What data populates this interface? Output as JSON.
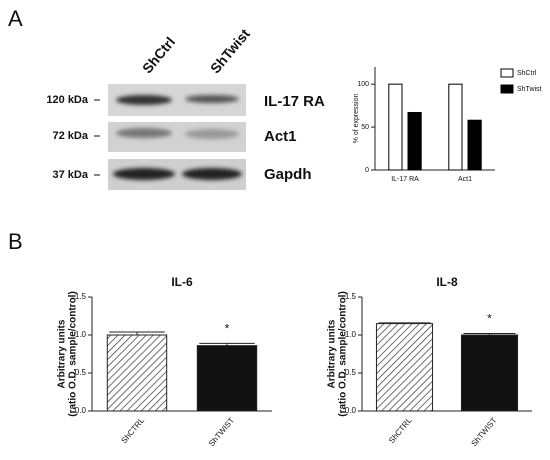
{
  "panel_labels": [
    "A",
    "B"
  ],
  "blot": {
    "lanes": [
      "ShCtrl",
      "ShTwist"
    ],
    "markers": [
      "120 kDa",
      "72 kDa",
      "37 kDa"
    ],
    "proteins": [
      "IL-17 RA",
      "Act1",
      "Gapdh"
    ]
  },
  "chart_data": [
    {
      "type": "grouped-bar",
      "y_label": "% of expression",
      "categories": [
        "IL-17 RA",
        "Act1"
      ],
      "series": [
        {
          "name": "ShCtrl",
          "color": "#ffffff",
          "values": [
            100,
            100
          ]
        },
        {
          "name": "ShTwist",
          "color": "#000000",
          "values": [
            67,
            58
          ]
        }
      ],
      "ylim": [
        0,
        120
      ],
      "yticks": [
        0,
        50,
        100
      ],
      "legend": "right"
    },
    {
      "type": "bar",
      "title": "IL-6",
      "y_label": [
        "Arbitrary units",
        "(ratio O.D. sample/control)"
      ],
      "categories": [
        "ShCTRL",
        "ShTWIST"
      ],
      "values": [
        1.0,
        0.86
      ],
      "errors": [
        0.04,
        0.03
      ],
      "bar_styles": [
        "hatch",
        "solid"
      ],
      "color": "#111111",
      "significance": [
        null,
        "*"
      ],
      "ylim": [
        0,
        1.5
      ],
      "yticks": [
        {
          "value": 0,
          "label": "0.0"
        },
        {
          "value": 0.5,
          "label": "0.5"
        },
        {
          "value": 1,
          "label": "1.0"
        },
        {
          "value": 1.5,
          "label": "1.5"
        }
      ]
    },
    {
      "type": "bar",
      "title": "IL-8",
      "y_label": [
        "Arbitrary units",
        "(ratio O.D. sample/control)"
      ],
      "categories": [
        "ShCTRL",
        "ShTWIST"
      ],
      "values": [
        1.15,
        1.0
      ],
      "errors": [
        0.01,
        0.02
      ],
      "bar_styles": [
        "hatch",
        "solid"
      ],
      "color": "#111111",
      "significance": [
        null,
        "*"
      ],
      "ylim": [
        0,
        1.5
      ],
      "yticks": [
        {
          "value": 0,
          "label": "0.0"
        },
        {
          "value": 0.5,
          "label": "0.5"
        },
        {
          "value": 1,
          "label": "1.0"
        },
        {
          "value": 1.5,
          "label": "1.5"
        }
      ]
    }
  ]
}
